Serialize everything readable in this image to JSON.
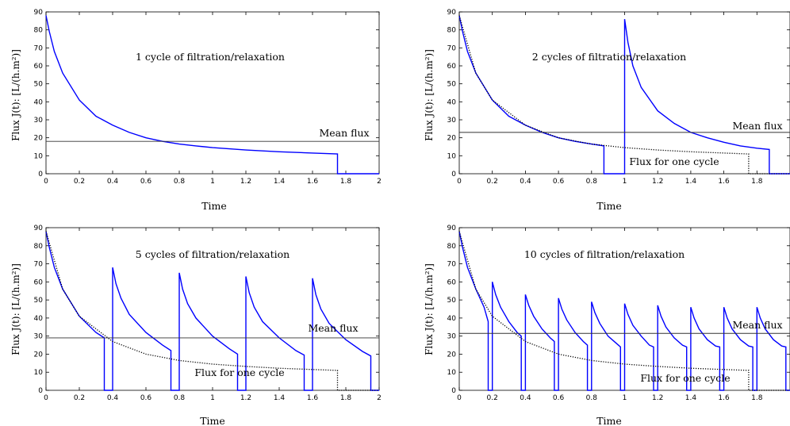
{
  "chart_data": [
    {
      "type": "line",
      "cycles": 1,
      "annotation": "1 cycle of filtration/relaxation",
      "mean_label": "Mean flux",
      "mean_value": 18,
      "cycle_label": "",
      "xlabel": "Time",
      "ylabel": "Flux J(t): [L/(h.m²)]",
      "xlim": [
        0,
        2
      ],
      "ylim": [
        0,
        90
      ],
      "xticks": [
        "0",
        "0.2",
        "0.4",
        "0.6",
        "0.8",
        "1",
        "1.2",
        "1.4",
        "1.6",
        "1.8",
        "2"
      ],
      "yticks": [
        "0",
        "10",
        "20",
        "30",
        "40",
        "50",
        "60",
        "70",
        "80",
        "90"
      ],
      "series": [
        {
          "color": "#0000ff",
          "style": "solid",
          "x": [
            0,
            0.02,
            0.05,
            0.1,
            0.2,
            0.3,
            0.4,
            0.5,
            0.6,
            0.7,
            0.8,
            0.9,
            1.0,
            1.2,
            1.4,
            1.6,
            1.75,
            1.75,
            2.0
          ],
          "y": [
            88,
            79,
            68,
            56,
            41,
            32,
            27,
            23,
            20,
            18,
            16.5,
            15.5,
            14.5,
            13.2,
            12.2,
            11.5,
            11,
            0,
            0
          ]
        }
      ]
    },
    {
      "type": "line",
      "cycles": 2,
      "annotation": "2 cycles of filtration/relaxation",
      "mean_label": "Mean flux",
      "mean_value": 23,
      "cycle_label": "Flux for one cycle",
      "xlabel": "Time",
      "ylabel": "Flux J(t): [L/(h.m²)]",
      "xlim": [
        0,
        2
      ],
      "ylim": [
        0,
        90
      ],
      "xticks": [
        "0",
        "0.2",
        "0.4",
        "0.6",
        "0.8",
        "1",
        "1.2",
        "1.4",
        "1.6",
        "1.8"
      ],
      "yticks": [
        "0",
        "10",
        "20",
        "30",
        "40",
        "50",
        "60",
        "70",
        "80",
        "90"
      ],
      "series": [
        {
          "color": "#0000ff",
          "style": "solid",
          "x": [
            0,
            0.02,
            0.05,
            0.1,
            0.2,
            0.3,
            0.4,
            0.5,
            0.6,
            0.7,
            0.8,
            0.875,
            0.875,
            1.0,
            1.0,
            1.02,
            1.05,
            1.1,
            1.2,
            1.3,
            1.4,
            1.5,
            1.6,
            1.7,
            1.8,
            1.875,
            1.875,
            2.0
          ],
          "y": [
            88,
            79,
            68,
            56,
            41,
            32,
            27,
            23,
            20,
            18,
            16.5,
            15.5,
            0,
            0,
            86,
            73,
            60,
            48,
            35,
            28,
            23,
            20,
            17.5,
            15.5,
            14.2,
            13.5,
            0,
            0
          ]
        },
        {
          "color": "#000000",
          "style": "dotted",
          "x": [
            0,
            0.1,
            0.2,
            0.4,
            0.6,
            0.8,
            1.0,
            1.2,
            1.4,
            1.6,
            1.75,
            1.75,
            2.0
          ],
          "y": [
            88,
            56,
            41,
            27,
            20,
            16.5,
            14.5,
            13.2,
            12.2,
            11.5,
            11,
            0,
            0
          ]
        }
      ]
    },
    {
      "type": "line",
      "cycles": 5,
      "annotation": "5 cycles of filtration/relaxation",
      "mean_label": "Mean flux",
      "mean_value": 29,
      "cycle_label": "Flux for one cycle",
      "xlabel": "Time",
      "ylabel": "Flux J(t): [L/(h.m²)]",
      "xlim": [
        0,
        2
      ],
      "ylim": [
        0,
        90
      ],
      "xticks": [
        "0",
        "0.2",
        "0.4",
        "0.6",
        "0.8",
        "1",
        "1.2",
        "1.4",
        "1.6",
        "1.8",
        "2"
      ],
      "yticks": [
        "0",
        "10",
        "20",
        "30",
        "40",
        "50",
        "60",
        "70",
        "80",
        "90"
      ],
      "series": [
        {
          "color": "#0000ff",
          "style": "solid",
          "x": [
            0,
            0.02,
            0.05,
            0.1,
            0.2,
            0.3,
            0.35,
            0.35,
            0.4,
            0.4,
            0.42,
            0.45,
            0.5,
            0.6,
            0.7,
            0.75,
            0.75,
            0.8,
            0.8,
            0.82,
            0.85,
            0.9,
            1.0,
            1.1,
            1.15,
            1.15,
            1.2,
            1.2,
            1.22,
            1.25,
            1.3,
            1.4,
            1.5,
            1.55,
            1.55,
            1.6,
            1.6,
            1.62,
            1.65,
            1.7,
            1.8,
            1.9,
            1.95,
            1.95,
            2.0
          ],
          "y": [
            88,
            79,
            68,
            56,
            41,
            32,
            29,
            0,
            0,
            68,
            59,
            51,
            42,
            32,
            25,
            22,
            0,
            0,
            65,
            56,
            48,
            40,
            30,
            23,
            20,
            0,
            0,
            63,
            54,
            46,
            38,
            29,
            22,
            19.5,
            0,
            0,
            62,
            53,
            45,
            37,
            28,
            21.5,
            19,
            0,
            0
          ]
        },
        {
          "color": "#000000",
          "style": "dotted",
          "x": [
            0,
            0.1,
            0.2,
            0.4,
            0.6,
            0.8,
            1.0,
            1.2,
            1.4,
            1.6,
            1.75,
            1.75,
            2.0
          ],
          "y": [
            88,
            56,
            41,
            27,
            20,
            16.5,
            14.5,
            13.2,
            12.2,
            11.5,
            11,
            0,
            0
          ]
        }
      ]
    },
    {
      "type": "line",
      "cycles": 10,
      "annotation": "10 cycles of filtration/relaxation",
      "mean_label": "Mean flux",
      "mean_value": 31.5,
      "cycle_label": "Flux for one cycle",
      "xlabel": "Time",
      "ylabel": "Flux J(t): [L/(h.m²)]",
      "xlim": [
        0,
        2
      ],
      "ylim": [
        0,
        90
      ],
      "xticks": [
        "0",
        "0.2",
        "0.4",
        "0.6",
        "0.8",
        "1",
        "1.2",
        "1.4",
        "1.6",
        "1.8"
      ],
      "yticks": [
        "0",
        "10",
        "20",
        "30",
        "40",
        "50",
        "60",
        "70",
        "80",
        "90"
      ],
      "series": [
        {
          "color": "#0000ff",
          "style": "solid",
          "x": [
            0,
            0.02,
            0.05,
            0.1,
            0.15,
            0.175,
            0.175,
            0.2,
            0.2,
            0.22,
            0.25,
            0.3,
            0.35,
            0.375,
            0.375,
            0.4,
            0.4,
            0.42,
            0.45,
            0.5,
            0.55,
            0.575,
            0.575,
            0.6,
            0.6,
            0.62,
            0.65,
            0.7,
            0.75,
            0.775,
            0.775,
            0.8,
            0.8,
            0.82,
            0.85,
            0.9,
            0.95,
            0.975,
            0.975,
            1.0,
            1.0,
            1.02,
            1.05,
            1.1,
            1.15,
            1.175,
            1.175,
            1.2,
            1.2,
            1.22,
            1.25,
            1.3,
            1.35,
            1.375,
            1.375,
            1.4,
            1.4,
            1.42,
            1.45,
            1.5,
            1.55,
            1.575,
            1.575,
            1.6,
            1.6,
            1.62,
            1.65,
            1.7,
            1.75,
            1.775,
            1.775,
            1.8,
            1.8,
            1.82,
            1.85,
            1.9,
            1.95,
            1.975,
            1.975,
            2.0
          ],
          "y": [
            88,
            79,
            68,
            56,
            46,
            38,
            0,
            0,
            60,
            53,
            46,
            38,
            32,
            30,
            0,
            0,
            53,
            47,
            41,
            34,
            29,
            27,
            0,
            0,
            51,
            45,
            39,
            32,
            27,
            25,
            0,
            0,
            49,
            43,
            37,
            30,
            26,
            24,
            0,
            0,
            48,
            42,
            36,
            30,
            25,
            24,
            0,
            0,
            47,
            41,
            35,
            29,
            25,
            24,
            0,
            0,
            46,
            40,
            34,
            28,
            24.5,
            24,
            0,
            0,
            46,
            40,
            34,
            28,
            24.5,
            24,
            0,
            0,
            46,
            40,
            34,
            28,
            24.5,
            24,
            0,
            0
          ]
        },
        {
          "color": "#000000",
          "style": "dotted",
          "x": [
            0,
            0.1,
            0.2,
            0.4,
            0.6,
            0.8,
            1.0,
            1.2,
            1.4,
            1.6,
            1.75,
            1.75,
            2.0
          ],
          "y": [
            88,
            56,
            41,
            27,
            20,
            16.5,
            14.5,
            13.2,
            12.2,
            11.5,
            11,
            0,
            0
          ]
        }
      ]
    }
  ]
}
